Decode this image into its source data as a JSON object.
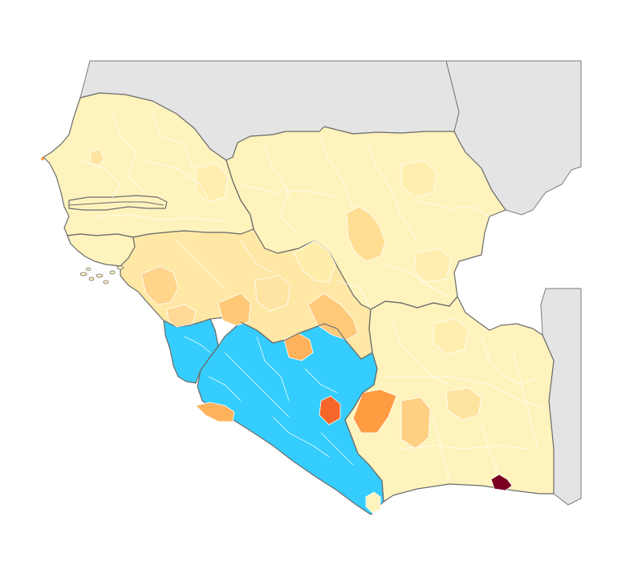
{
  "map": {
    "colors": {
      "background": "#ffffff",
      "neighbor_land": "#e4e4e4",
      "country_border": "#6b6b6b",
      "region_border": "#ffffff",
      "level_0": "#fff6c2",
      "level_1": "#fff0b0",
      "level_2": "#ffe4a0",
      "level_3": "#ffd080",
      "level_4": "#ffc066",
      "level_5": "#ff9a40",
      "level_6": "#f46a2a",
      "level_7": "#7a0022",
      "highlight": "#35cdfd"
    },
    "legend": []
  }
}
